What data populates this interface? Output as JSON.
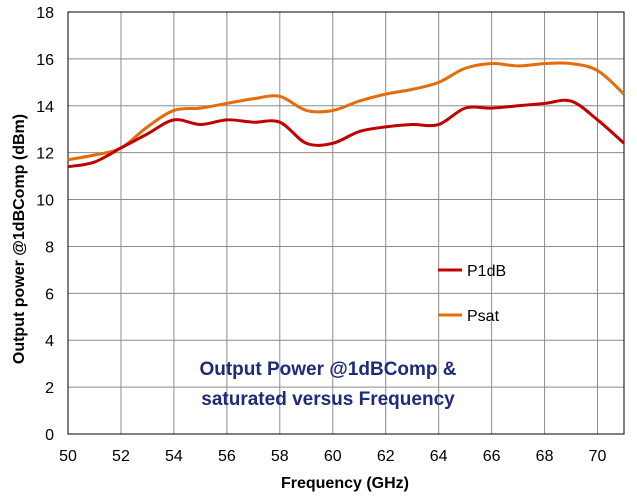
{
  "chart_data": {
    "type": "line",
    "title": "",
    "xlabel": "Frequency (GHz)",
    "ylabel": "Output power @1dBComp (dBm)",
    "xlim": [
      50,
      71
    ],
    "ylim": [
      0,
      18
    ],
    "xticks": [
      50,
      52,
      54,
      56,
      58,
      60,
      62,
      64,
      66,
      68,
      70
    ],
    "yticks": [
      0,
      2,
      4,
      6,
      8,
      10,
      12,
      14,
      16,
      18
    ],
    "grid": true,
    "legend_position": "right-middle",
    "annotation": [
      "Output Power @1dBComp &",
      "saturated versus Frequency"
    ],
    "series": [
      {
        "name": "P1dB",
        "color": "#c00000",
        "x": [
          50,
          51,
          52,
          53,
          54,
          55,
          56,
          57,
          58,
          59,
          60,
          61,
          62,
          63,
          64,
          65,
          66,
          67,
          68,
          69,
          70,
          71
        ],
        "y": [
          11.4,
          11.6,
          12.2,
          12.8,
          13.4,
          13.2,
          13.4,
          13.3,
          13.3,
          12.4,
          12.4,
          12.9,
          13.1,
          13.2,
          13.2,
          13.9,
          13.9,
          14.0,
          14.1,
          14.2,
          13.4,
          12.4
        ]
      },
      {
        "name": "Psat",
        "color": "#e46c0a",
        "x": [
          50,
          51,
          52,
          53,
          54,
          55,
          56,
          57,
          58,
          59,
          60,
          61,
          62,
          63,
          64,
          65,
          66,
          67,
          68,
          69,
          70,
          71
        ],
        "y": [
          11.7,
          11.9,
          12.2,
          13.1,
          13.8,
          13.9,
          14.1,
          14.3,
          14.4,
          13.8,
          13.8,
          14.2,
          14.5,
          14.7,
          15.0,
          15.6,
          15.8,
          15.7,
          15.8,
          15.8,
          15.5,
          14.5
        ]
      }
    ]
  }
}
